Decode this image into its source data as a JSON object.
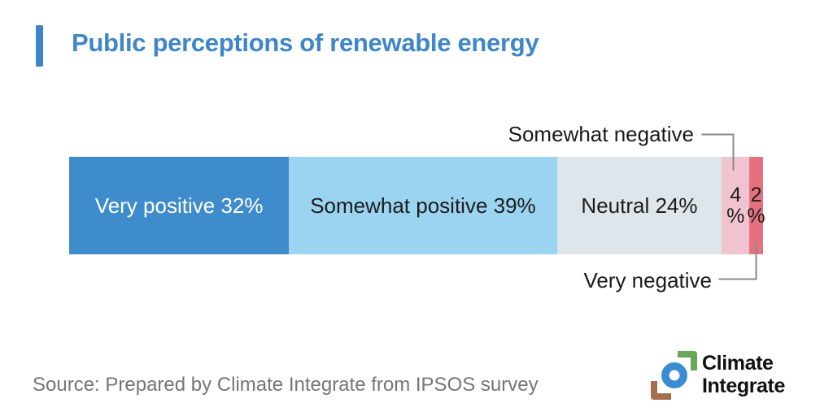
{
  "header": {
    "title": "Public perceptions of renewable energy",
    "accent_color": "#3D86C7"
  },
  "chart_data": {
    "type": "bar",
    "orientation": "horizontal-stacked",
    "title": "Public perceptions of renewable energy",
    "unit": "%",
    "categories": [
      "Very positive",
      "Somewhat positive",
      "Neutral",
      "Somewhat negative",
      "Very negative"
    ],
    "values": [
      32,
      39,
      24,
      4,
      2
    ],
    "segments": [
      {
        "name": "very-positive",
        "category": "Very positive",
        "value": 32,
        "color": "#3E8CCB",
        "text_color": "#FFFFFF",
        "label_lines": [
          "Very positive 32%"
        ]
      },
      {
        "name": "somewhat-positive",
        "category": "Somewhat positive",
        "value": 39,
        "color": "#9BD4F1",
        "text_color": "#1C1C1C",
        "label_lines": [
          "Somewhat positive 39%"
        ]
      },
      {
        "name": "neutral",
        "category": "Neutral",
        "value": 24,
        "color": "#DEE6EB",
        "text_color": "#1C1C1C",
        "label_lines": [
          "Neutral 24%"
        ]
      },
      {
        "name": "somewhat-negative",
        "category": "Somewhat negative",
        "value": 4,
        "color": "#F0C4CF",
        "text_color": "#1C1C1C",
        "label_lines": [
          "4",
          "%"
        ]
      },
      {
        "name": "very-negative",
        "category": "Very negative",
        "value": 2,
        "color": "#E5707E",
        "text_color": "#1C1C1C",
        "label_lines": [
          "2",
          "%"
        ]
      }
    ],
    "callouts": [
      {
        "text": "Somewhat negative",
        "target": "somewhat-negative",
        "position": "above"
      },
      {
        "text": "Very negative",
        "target": "very-negative",
        "position": "below"
      }
    ],
    "leader_line_color": "#8A8A8A",
    "legend_position": "none",
    "grid": false
  },
  "footer": {
    "source": "Source: Prepared by Climate Integrate from IPSOS survey"
  },
  "logo": {
    "line1": "Climate",
    "line2": "Integrate",
    "colors": {
      "green": "#69A85B",
      "blue": "#3B8CD3",
      "brown": "#A5714C",
      "text": "#111111"
    }
  }
}
